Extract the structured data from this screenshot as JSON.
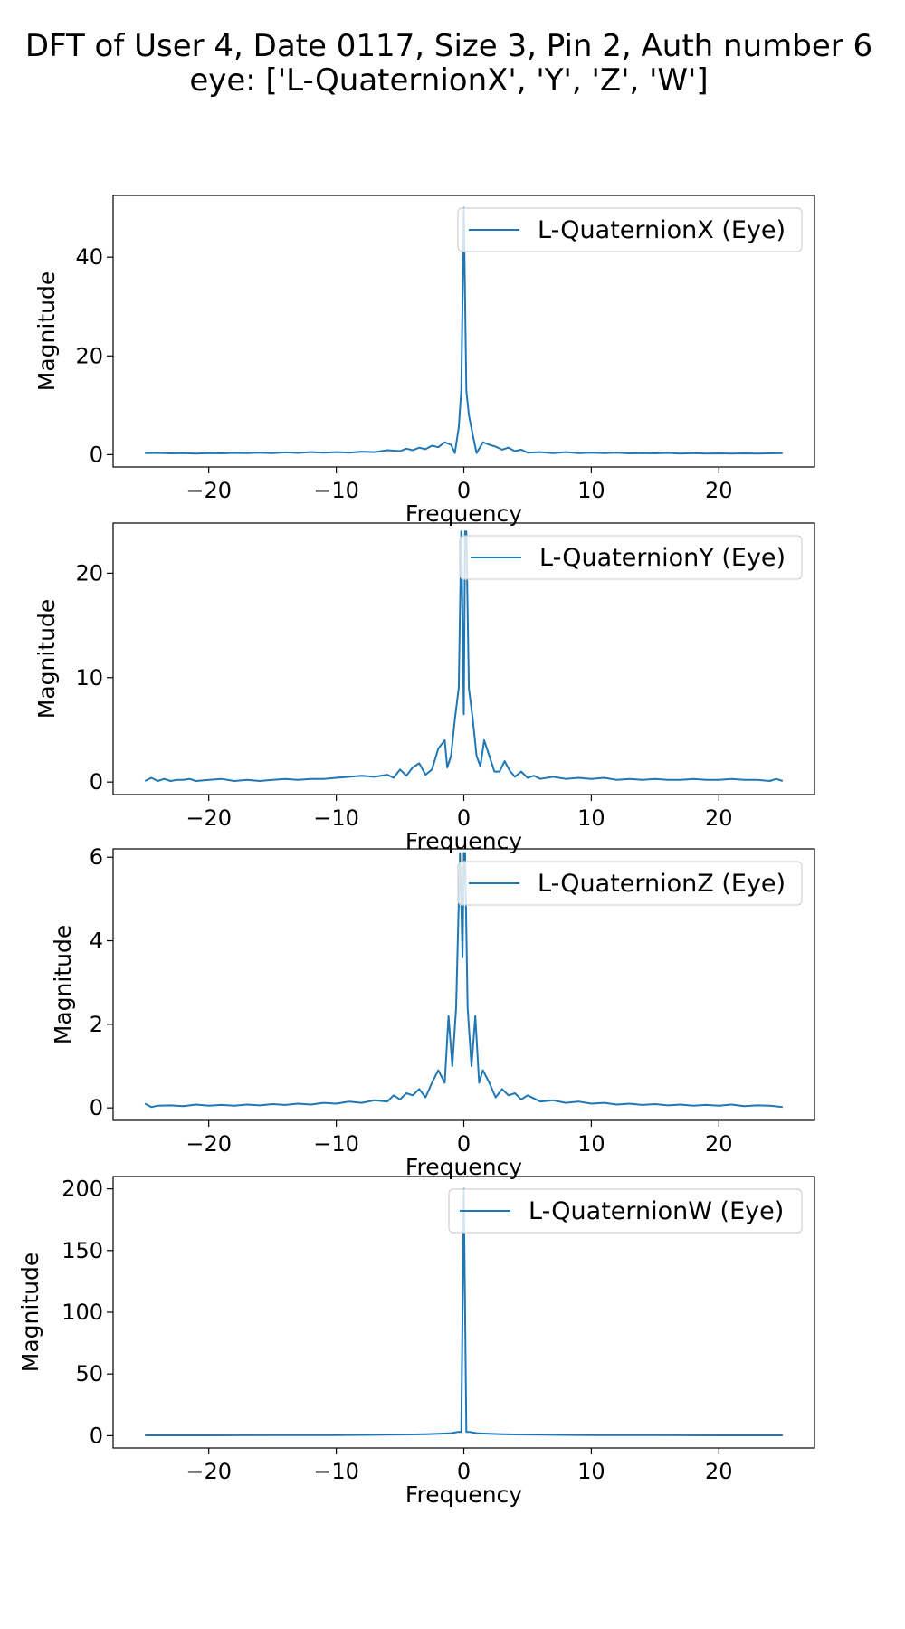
{
  "figure": {
    "title_lines": [
      "DFT of User 4, Date 0117, Size 3, Pin 2, Auth number 6",
      "eye: ['L-QuaternionX', 'Y', 'Z', 'W']"
    ]
  },
  "colors": {
    "series": "#1f77b4"
  },
  "chart_data": [
    {
      "type": "line",
      "xlabel": "Frequency",
      "ylabel": "Magnitude",
      "xlim": [
        -27.5,
        27.5
      ],
      "ylim": [
        -2.5,
        52.5
      ],
      "xticks": [
        -20,
        -10,
        0,
        10,
        20
      ],
      "yticks": [
        0,
        20,
        40
      ],
      "legend_position": "upper right",
      "grid": false,
      "series": [
        {
          "name": "L-QuaternionX (Eye)",
          "x": [
            -25,
            -24,
            -23,
            -22,
            -21,
            -20,
            -19,
            -18,
            -17,
            -16,
            -15,
            -14,
            -13,
            -12,
            -11,
            -10,
            -9,
            -8,
            -7,
            -6,
            -5,
            -4.5,
            -4,
            -3.5,
            -3,
            -2.5,
            -2,
            -1.5,
            -1,
            -0.7,
            -0.4,
            -0.2,
            0,
            0.2,
            0.4,
            0.7,
            1,
            1.5,
            2,
            2.5,
            3,
            3.5,
            4,
            4.5,
            5,
            6,
            7,
            8,
            9,
            10,
            11,
            12,
            13,
            14,
            15,
            16,
            17,
            18,
            19,
            20,
            21,
            22,
            23,
            24,
            25
          ],
          "y": [
            0.3,
            0.35,
            0.25,
            0.3,
            0.2,
            0.3,
            0.25,
            0.35,
            0.3,
            0.4,
            0.3,
            0.45,
            0.35,
            0.5,
            0.4,
            0.5,
            0.4,
            0.6,
            0.5,
            0.9,
            0.7,
            1.2,
            0.9,
            1.4,
            1.1,
            1.8,
            1.5,
            2.5,
            2.0,
            0.3,
            5.5,
            13.0,
            50.0,
            13.0,
            8.0,
            4.0,
            0.3,
            2.5,
            2.0,
            1.6,
            1.0,
            1.4,
            0.7,
            1.0,
            0.4,
            0.5,
            0.3,
            0.5,
            0.3,
            0.4,
            0.3,
            0.4,
            0.25,
            0.3,
            0.25,
            0.35,
            0.2,
            0.3,
            0.2,
            0.25,
            0.2,
            0.25,
            0.2,
            0.25,
            0.3
          ]
        }
      ]
    },
    {
      "type": "line",
      "xlabel": "Frequency",
      "ylabel": "Magnitude",
      "xlim": [
        -27.5,
        27.5
      ],
      "ylim": [
        -1.2,
        24.8
      ],
      "xticks": [
        -20,
        -10,
        0,
        10,
        20
      ],
      "yticks": [
        0,
        10,
        20
      ],
      "legend_position": "upper right",
      "grid": false,
      "series": [
        {
          "name": "L-QuaternionY (Eye)",
          "x": [
            -25,
            -24.5,
            -24,
            -23.5,
            -23,
            -22.5,
            -22,
            -21.5,
            -21,
            -20,
            -19,
            -18,
            -17,
            -16,
            -15,
            -14,
            -13,
            -12,
            -11,
            -10,
            -9,
            -8,
            -7,
            -6,
            -5.5,
            -5,
            -4.5,
            -4,
            -3.5,
            -3,
            -2.5,
            -2,
            -1.5,
            -1.3,
            -1,
            -0.7,
            -0.4,
            -0.2,
            0,
            0.1,
            0.2,
            0.4,
            0.7,
            1,
            1.3,
            1.6,
            2,
            2.4,
            2.8,
            3.2,
            3.6,
            4,
            4.5,
            5,
            5.5,
            6,
            7,
            8,
            9,
            10,
            11,
            12,
            13,
            14,
            15,
            16,
            17,
            18,
            19,
            20,
            21,
            22,
            23,
            24,
            24.5,
            25
          ],
          "y": [
            0.1,
            0.4,
            0.1,
            0.3,
            0.1,
            0.2,
            0.2,
            0.3,
            0.1,
            0.2,
            0.3,
            0.1,
            0.2,
            0.1,
            0.2,
            0.3,
            0.2,
            0.3,
            0.3,
            0.4,
            0.5,
            0.6,
            0.5,
            0.7,
            0.4,
            1.2,
            0.6,
            1.4,
            1.8,
            0.7,
            1.2,
            3.2,
            4.0,
            1.4,
            2.5,
            6.0,
            9.0,
            24.0,
            6.5,
            24.0,
            24.0,
            9.0,
            6.0,
            2.5,
            1.5,
            4.0,
            2.5,
            1.0,
            1.0,
            2.0,
            1.1,
            0.5,
            1.0,
            0.4,
            0.6,
            0.3,
            0.5,
            0.3,
            0.4,
            0.3,
            0.4,
            0.2,
            0.3,
            0.2,
            0.3,
            0.2,
            0.2,
            0.3,
            0.2,
            0.2,
            0.3,
            0.2,
            0.2,
            0.1,
            0.3,
            0.1
          ]
        }
      ]
    },
    {
      "type": "line",
      "xlabel": "Frequency",
      "ylabel": "Magnitude",
      "xlim": [
        -27.5,
        27.5
      ],
      "ylim": [
        -0.3,
        6.2
      ],
      "xticks": [
        -20,
        -10,
        0,
        10,
        20
      ],
      "yticks": [
        0,
        2,
        4,
        6
      ],
      "legend_position": "upper right",
      "grid": false,
      "series": [
        {
          "name": "L-QuaternionZ (Eye)",
          "x": [
            -25,
            -24.5,
            -24,
            -23,
            -22,
            -21,
            -20,
            -19,
            -18,
            -17,
            -16,
            -15,
            -14,
            -13,
            -12,
            -11,
            -10,
            -9,
            -8,
            -7,
            -6,
            -5.5,
            -5,
            -4.5,
            -4,
            -3.5,
            -3,
            -2.5,
            -2,
            -1.5,
            -1.2,
            -0.9,
            -0.6,
            -0.3,
            -0.1,
            0,
            0.1,
            0.3,
            0.6,
            0.9,
            1.2,
            1.5,
            2,
            2.5,
            3,
            3.5,
            4,
            4.5,
            5,
            6,
            7,
            8,
            9,
            10,
            11,
            12,
            13,
            14,
            15,
            16,
            17,
            18,
            19,
            20,
            21,
            22,
            23,
            24,
            25
          ],
          "y": [
            0.1,
            0.02,
            0.05,
            0.06,
            0.04,
            0.08,
            0.05,
            0.07,
            0.05,
            0.08,
            0.06,
            0.09,
            0.07,
            0.1,
            0.08,
            0.12,
            0.1,
            0.15,
            0.12,
            0.18,
            0.15,
            0.3,
            0.2,
            0.35,
            0.3,
            0.45,
            0.25,
            0.6,
            0.9,
            0.6,
            2.2,
            1.0,
            2.4,
            6.1,
            3.6,
            6.1,
            6.1,
            2.4,
            1.0,
            2.2,
            0.6,
            0.9,
            0.6,
            0.25,
            0.45,
            0.3,
            0.35,
            0.2,
            0.3,
            0.15,
            0.18,
            0.12,
            0.15,
            0.1,
            0.12,
            0.08,
            0.1,
            0.07,
            0.09,
            0.06,
            0.08,
            0.05,
            0.07,
            0.05,
            0.08,
            0.04,
            0.06,
            0.05,
            0.02
          ]
        }
      ]
    },
    {
      "type": "line",
      "xlabel": "Frequency",
      "ylabel": "Magnitude",
      "xlim": [
        -27.5,
        27.5
      ],
      "ylim": [
        -10,
        210
      ],
      "xticks": [
        -20,
        -10,
        0,
        10,
        20
      ],
      "yticks": [
        0,
        50,
        100,
        150,
        200
      ],
      "legend_position": "upper right",
      "grid": false,
      "series": [
        {
          "name": "L-QuaternionW (Eye)",
          "x": [
            -25,
            -20,
            -15,
            -10,
            -8,
            -6,
            -4,
            -3,
            -2,
            -1,
            -0.5,
            -0.2,
            0,
            0.2,
            0.5,
            1,
            2,
            3,
            4,
            6,
            8,
            10,
            15,
            20,
            25
          ],
          "y": [
            0.3,
            0.3,
            0.4,
            0.5,
            0.6,
            0.8,
            1.0,
            1.2,
            1.5,
            2.0,
            3.0,
            3.0,
            200.0,
            3.0,
            3.0,
            2.0,
            1.5,
            1.2,
            1.0,
            0.8,
            0.6,
            0.5,
            0.4,
            0.3,
            0.3
          ]
        }
      ]
    }
  ]
}
